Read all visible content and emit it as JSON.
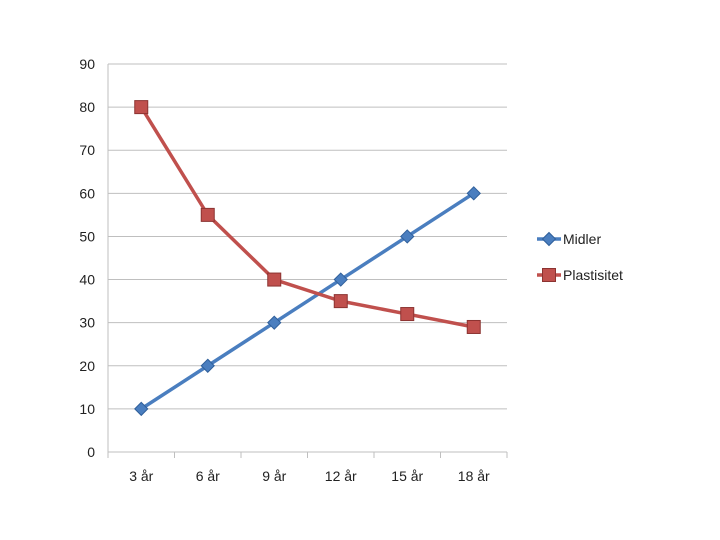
{
  "chart_data": {
    "type": "line",
    "categories": [
      "3 år",
      "6 år",
      "9 år",
      "12 år",
      "15 år",
      "18 år"
    ],
    "series": [
      {
        "name": "Midler",
        "values": [
          10,
          20,
          30,
          40,
          50,
          60
        ],
        "color": "#4a7ebf",
        "marker": "diamond"
      },
      {
        "name": "Plastisitet",
        "values": [
          80,
          55,
          40,
          35,
          32,
          29
        ],
        "color": "#c0504d",
        "marker": "square"
      }
    ],
    "ylim": [
      0,
      90
    ],
    "yticks": [
      0,
      10,
      20,
      30,
      40,
      50,
      60,
      70,
      80,
      90
    ],
    "grid": true,
    "legend_position": "right",
    "title": "",
    "xlabel": "",
    "ylabel": ""
  }
}
